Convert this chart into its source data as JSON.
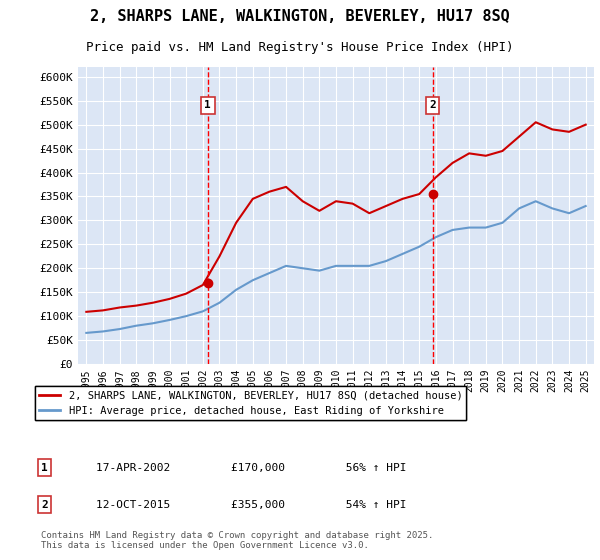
{
  "title": "2, SHARPS LANE, WALKINGTON, BEVERLEY, HU17 8SQ",
  "subtitle": "Price paid vs. HM Land Registry's House Price Index (HPI)",
  "background_color": "#dce6f5",
  "plot_bg_color": "#dce6f5",
  "ylim": [
    0,
    620000
  ],
  "yticks": [
    0,
    50000,
    100000,
    150000,
    200000,
    250000,
    300000,
    350000,
    400000,
    450000,
    500000,
    550000,
    600000
  ],
  "ytick_labels": [
    "£0",
    "£50K",
    "£100K",
    "£150K",
    "£200K",
    "£250K",
    "£300K",
    "£350K",
    "£400K",
    "£450K",
    "£500K",
    "£550K",
    "£600K"
  ],
  "red_line_color": "#cc0000",
  "blue_line_color": "#6699cc",
  "marker1_year": 2002.3,
  "marker2_year": 2015.8,
  "marker1_value": 170000,
  "marker2_value": 355000,
  "legend_label_red": "2, SHARPS LANE, WALKINGTON, BEVERLEY, HU17 8SQ (detached house)",
  "legend_label_blue": "HPI: Average price, detached house, East Riding of Yorkshire",
  "annotation1_label": "1",
  "annotation2_label": "2",
  "footnote1": "1    17-APR-2002         £170,000         56% ↑ HPI",
  "footnote2": "2    12-OCT-2015         £355,000         54% ↑ HPI",
  "copyright_text": "Contains HM Land Registry data © Crown copyright and database right 2025.\nThis data is licensed under the Open Government Licence v3.0.",
  "hpi_years": [
    1995,
    1996,
    1997,
    1998,
    1999,
    2000,
    2001,
    2002,
    2003,
    2004,
    2005,
    2006,
    2007,
    2008,
    2009,
    2010,
    2011,
    2012,
    2013,
    2014,
    2015,
    2016,
    2017,
    2018,
    2019,
    2020,
    2021,
    2022,
    2023,
    2024,
    2025
  ],
  "hpi_values": [
    65000,
    68000,
    73000,
    80000,
    85000,
    92000,
    100000,
    110000,
    128000,
    155000,
    175000,
    190000,
    205000,
    200000,
    195000,
    205000,
    205000,
    205000,
    215000,
    230000,
    245000,
    265000,
    280000,
    285000,
    285000,
    295000,
    325000,
    340000,
    325000,
    315000,
    330000
  ],
  "house_years": [
    1995,
    1996,
    1997,
    1998,
    1999,
    2000,
    2001,
    2002,
    2003,
    2004,
    2005,
    2006,
    2007,
    2008,
    2009,
    2010,
    2011,
    2012,
    2013,
    2014,
    2015,
    2016,
    2017,
    2018,
    2019,
    2020,
    2021,
    2022,
    2023,
    2024,
    2025
  ],
  "house_values": [
    109000,
    112000,
    118000,
    122000,
    128000,
    136000,
    147000,
    165000,
    225000,
    295000,
    345000,
    360000,
    370000,
    340000,
    320000,
    340000,
    335000,
    315000,
    330000,
    345000,
    355000,
    390000,
    420000,
    440000,
    435000,
    445000,
    475000,
    505000,
    490000,
    485000,
    500000
  ]
}
